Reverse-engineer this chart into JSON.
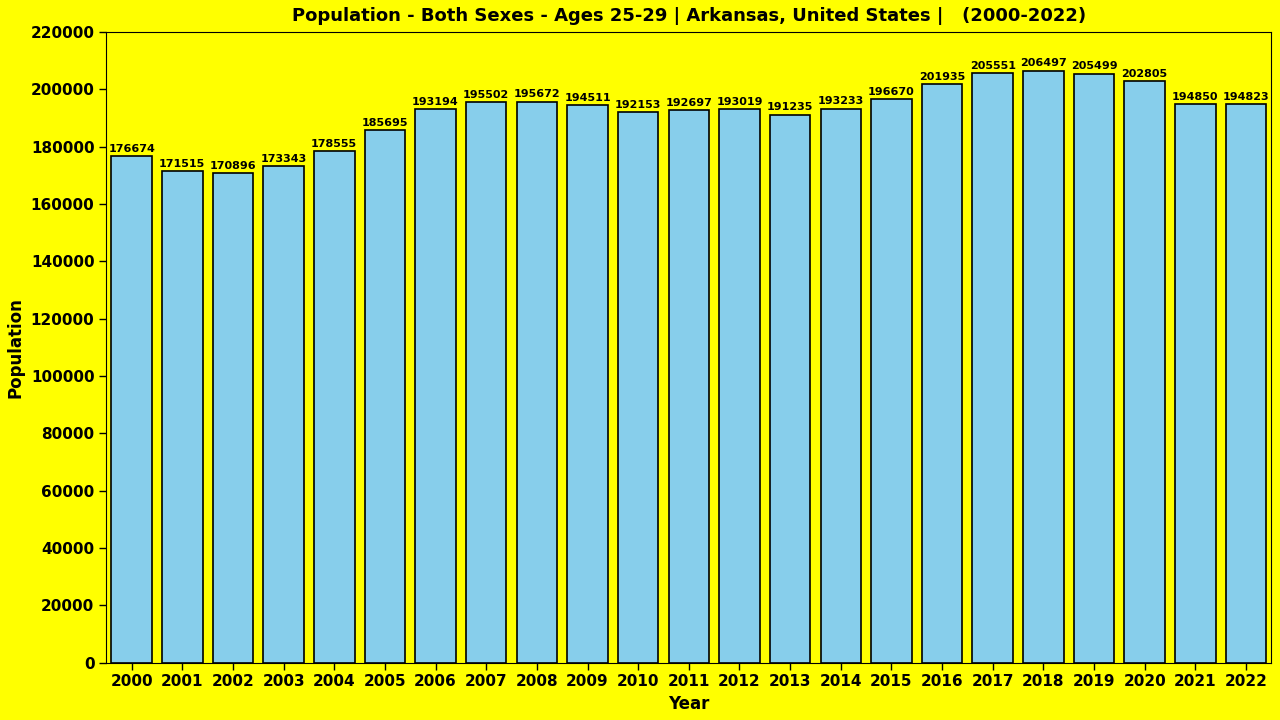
{
  "title": "Population - Both Sexes - Ages 25-29 | Arkansas, United States |   (2000-2022)",
  "xlabel": "Year",
  "ylabel": "Population",
  "background_color": "#FFFF00",
  "bar_color": "#87CEEB",
  "bar_edge_color": "#000000",
  "years": [
    2000,
    2001,
    2002,
    2003,
    2004,
    2005,
    2006,
    2007,
    2008,
    2009,
    2010,
    2011,
    2012,
    2013,
    2014,
    2015,
    2016,
    2017,
    2018,
    2019,
    2020,
    2021,
    2022
  ],
  "values": [
    176674,
    171515,
    170896,
    173343,
    178555,
    185695,
    193194,
    195502,
    195672,
    194511,
    192153,
    192697,
    193019,
    191235,
    193233,
    196670,
    201935,
    205551,
    206497,
    205499,
    202805,
    194850,
    194823
  ],
  "ylim": [
    0,
    220000
  ],
  "yticks": [
    0,
    20000,
    40000,
    60000,
    80000,
    100000,
    120000,
    140000,
    160000,
    180000,
    200000,
    220000
  ],
  "title_fontsize": 13,
  "label_fontsize": 12,
  "tick_fontsize": 11,
  "value_fontsize": 8.0
}
